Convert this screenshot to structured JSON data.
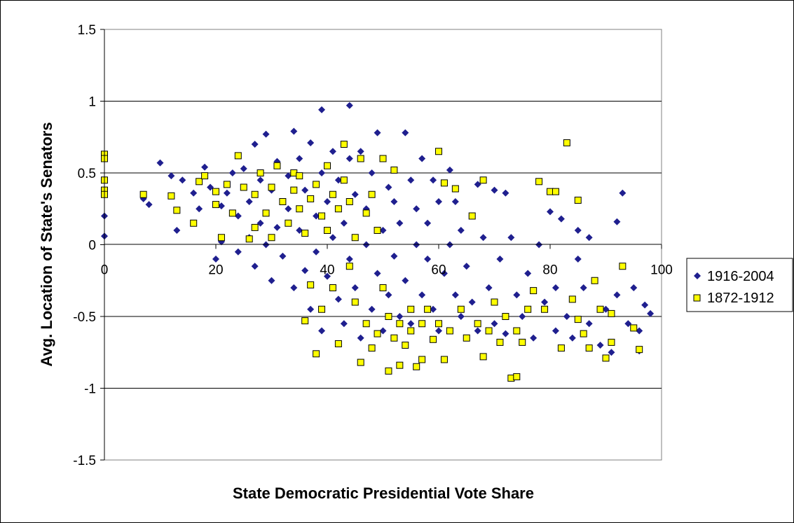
{
  "chart_data": {
    "type": "scatter",
    "title": "",
    "xlabel": "State Democratic Presidential Vote Share",
    "ylabel": "Avg. Location of State's Senators",
    "xlim": [
      0,
      100
    ],
    "ylim": [
      -1.5,
      1.5
    ],
    "x_ticks": [
      "0",
      "20",
      "40",
      "60",
      "80",
      "100"
    ],
    "y_ticks": [
      "1.5",
      "1",
      "0.5",
      "0",
      "-0.5",
      "-1",
      "-1.5"
    ],
    "grid": "horizontal",
    "legend_position": "right",
    "series": [
      {
        "name": "1916-2004",
        "marker": "diamond",
        "color": "#1f1f8f",
        "points": [
          [
            0,
            0.2
          ],
          [
            0,
            0.06
          ],
          [
            7,
            0.32
          ],
          [
            8,
            0.28
          ],
          [
            10,
            0.57
          ],
          [
            12,
            0.48
          ],
          [
            13,
            0.1
          ],
          [
            14,
            0.45
          ],
          [
            16,
            0.36
          ],
          [
            17,
            0.25
          ],
          [
            18,
            0.54
          ],
          [
            19,
            0.4
          ],
          [
            20,
            -0.1
          ],
          [
            21,
            0.27
          ],
          [
            21,
            0.02
          ],
          [
            22,
            0.36
          ],
          [
            23,
            0.5
          ],
          [
            24,
            0.2
          ],
          [
            24,
            -0.05
          ],
          [
            25,
            0.53
          ],
          [
            26,
            0.3
          ],
          [
            26,
            0.05
          ],
          [
            27,
            0.7
          ],
          [
            27,
            -0.15
          ],
          [
            28,
            0.45
          ],
          [
            28,
            0.15
          ],
          [
            29,
            0.77
          ],
          [
            29,
            0.0
          ],
          [
            30,
            0.38
          ],
          [
            30,
            -0.25
          ],
          [
            31,
            0.58
          ],
          [
            31,
            0.12
          ],
          [
            32,
            -0.08
          ],
          [
            33,
            0.48
          ],
          [
            33,
            0.25
          ],
          [
            34,
            0.79
          ],
          [
            34,
            -0.3
          ],
          [
            35,
            0.1
          ],
          [
            35,
            0.6
          ],
          [
            36,
            -0.18
          ],
          [
            36,
            0.38
          ],
          [
            37,
            0.71
          ],
          [
            37,
            -0.45
          ],
          [
            38,
            0.2
          ],
          [
            38,
            -0.05
          ],
          [
            39,
            0.94
          ],
          [
            39,
            0.5
          ],
          [
            39,
            -0.6
          ],
          [
            40,
            0.3
          ],
          [
            40,
            -0.22
          ],
          [
            41,
            0.65
          ],
          [
            41,
            0.05
          ],
          [
            42,
            -0.38
          ],
          [
            42,
            0.45
          ],
          [
            43,
            0.15
          ],
          [
            43,
            -0.55
          ],
          [
            44,
            0.97
          ],
          [
            44,
            0.6
          ],
          [
            44,
            -0.1
          ],
          [
            45,
            0.35
          ],
          [
            45,
            -0.3
          ],
          [
            46,
            0.65
          ],
          [
            46,
            -0.65
          ],
          [
            47,
            0.0
          ],
          [
            47,
            0.25
          ],
          [
            48,
            0.5
          ],
          [
            48,
            -0.45
          ],
          [
            49,
            0.78
          ],
          [
            49,
            -0.2
          ],
          [
            50,
            0.1
          ],
          [
            50,
            -0.6
          ],
          [
            51,
            0.4
          ],
          [
            51,
            -0.35
          ],
          [
            52,
            -0.08
          ],
          [
            52,
            0.3
          ],
          [
            53,
            -0.5
          ],
          [
            53,
            0.15
          ],
          [
            54,
            0.78
          ],
          [
            54,
            -0.25
          ],
          [
            55,
            0.45
          ],
          [
            55,
            -0.55
          ],
          [
            56,
            0.0
          ],
          [
            56,
            0.25
          ],
          [
            57,
            -0.35
          ],
          [
            57,
            0.6
          ],
          [
            58,
            -0.1
          ],
          [
            58,
            0.15
          ],
          [
            59,
            0.45
          ],
          [
            59,
            -0.45
          ],
          [
            60,
            0.3
          ],
          [
            60,
            -0.6
          ],
          [
            61,
            -0.2
          ],
          [
            62,
            0.52
          ],
          [
            62,
            0.0
          ],
          [
            63,
            -0.35
          ],
          [
            63,
            0.3
          ],
          [
            64,
            -0.5
          ],
          [
            64,
            0.1
          ],
          [
            65,
            -0.15
          ],
          [
            66,
            0.2
          ],
          [
            66,
            -0.4
          ],
          [
            67,
            0.42
          ],
          [
            67,
            -0.6
          ],
          [
            68,
            0.05
          ],
          [
            69,
            -0.3
          ],
          [
            70,
            0.38
          ],
          [
            70,
            -0.55
          ],
          [
            71,
            -0.1
          ],
          [
            72,
            0.36
          ],
          [
            72,
            -0.62
          ],
          [
            73,
            0.05
          ],
          [
            74,
            -0.35
          ],
          [
            75,
            -0.5
          ],
          [
            76,
            -0.2
          ],
          [
            77,
            -0.65
          ],
          [
            78,
            0.0
          ],
          [
            79,
            -0.4
          ],
          [
            80,
            0.23
          ],
          [
            81,
            -0.6
          ],
          [
            81,
            -0.3
          ],
          [
            82,
            0.18
          ],
          [
            83,
            -0.5
          ],
          [
            84,
            -0.65
          ],
          [
            85,
            0.1
          ],
          [
            85,
            -0.1
          ],
          [
            86,
            -0.3
          ],
          [
            87,
            0.05
          ],
          [
            87,
            -0.55
          ],
          [
            88,
            -0.25
          ],
          [
            89,
            -0.7
          ],
          [
            90,
            -0.45
          ],
          [
            91,
            -0.75
          ],
          [
            92,
            0.16
          ],
          [
            92,
            -0.35
          ],
          [
            93,
            0.36
          ],
          [
            94,
            -0.55
          ],
          [
            95,
            -0.3
          ],
          [
            96,
            -0.6
          ],
          [
            96,
            -0.74
          ],
          [
            97,
            -0.42
          ],
          [
            98,
            -0.48
          ]
        ]
      },
      {
        "name": "1872-1912",
        "marker": "square",
        "color": "#ffff00",
        "points": [
          [
            0,
            0.63
          ],
          [
            0,
            0.6
          ],
          [
            0,
            0.45
          ],
          [
            0,
            0.38
          ],
          [
            0,
            0.35
          ],
          [
            7,
            0.35
          ],
          [
            12,
            0.34
          ],
          [
            13,
            0.24
          ],
          [
            16,
            0.15
          ],
          [
            17,
            0.44
          ],
          [
            18,
            0.48
          ],
          [
            20,
            0.37
          ],
          [
            20,
            0.28
          ],
          [
            21,
            0.05
          ],
          [
            22,
            0.42
          ],
          [
            23,
            0.22
          ],
          [
            24,
            0.62
          ],
          [
            25,
            0.4
          ],
          [
            26,
            0.04
          ],
          [
            27,
            0.35
          ],
          [
            27,
            0.12
          ],
          [
            28,
            0.5
          ],
          [
            29,
            0.22
          ],
          [
            30,
            0.4
          ],
          [
            30,
            0.05
          ],
          [
            31,
            0.55
          ],
          [
            32,
            0.3
          ],
          [
            33,
            0.15
          ],
          [
            34,
            0.5
          ],
          [
            34,
            0.38
          ],
          [
            35,
            0.25
          ],
          [
            35,
            0.48
          ],
          [
            36,
            -0.53
          ],
          [
            36,
            0.08
          ],
          [
            37,
            0.32
          ],
          [
            37,
            -0.28
          ],
          [
            38,
            0.42
          ],
          [
            38,
            -0.76
          ],
          [
            39,
            0.2
          ],
          [
            39,
            -0.45
          ],
          [
            40,
            0.55
          ],
          [
            40,
            0.1
          ],
          [
            41,
            0.35
          ],
          [
            41,
            -0.3
          ],
          [
            42,
            0.25
          ],
          [
            42,
            -0.69
          ],
          [
            43,
            0.7
          ],
          [
            43,
            0.45
          ],
          [
            44,
            -0.15
          ],
          [
            44,
            0.3
          ],
          [
            45,
            0.05
          ],
          [
            45,
            -0.4
          ],
          [
            46,
            0.6
          ],
          [
            46,
            -0.82
          ],
          [
            47,
            0.22
          ],
          [
            47,
            -0.55
          ],
          [
            48,
            0.35
          ],
          [
            48,
            -0.72
          ],
          [
            49,
            0.1
          ],
          [
            49,
            -0.62
          ],
          [
            50,
            0.6
          ],
          [
            50,
            -0.3
          ],
          [
            51,
            -0.5
          ],
          [
            51,
            -0.88
          ],
          [
            52,
            0.52
          ],
          [
            52,
            -0.65
          ],
          [
            53,
            -0.55
          ],
          [
            53,
            -0.84
          ],
          [
            54,
            -0.7
          ],
          [
            55,
            -0.45
          ],
          [
            55,
            -0.6
          ],
          [
            56,
            -0.85
          ],
          [
            57,
            -0.55
          ],
          [
            57,
            -0.8
          ],
          [
            58,
            -0.45
          ],
          [
            59,
            -0.66
          ],
          [
            60,
            0.65
          ],
          [
            60,
            -0.55
          ],
          [
            61,
            0.43
          ],
          [
            61,
            -0.8
          ],
          [
            62,
            -0.6
          ],
          [
            63,
            0.39
          ],
          [
            64,
            -0.45
          ],
          [
            65,
            -0.65
          ],
          [
            66,
            0.2
          ],
          [
            67,
            -0.55
          ],
          [
            68,
            0.45
          ],
          [
            68,
            -0.78
          ],
          [
            69,
            -0.6
          ],
          [
            70,
            -0.4
          ],
          [
            71,
            -0.68
          ],
          [
            72,
            -0.5
          ],
          [
            73,
            -0.93
          ],
          [
            74,
            -0.92
          ],
          [
            74,
            -0.6
          ],
          [
            75,
            -0.68
          ],
          [
            76,
            -0.45
          ],
          [
            77,
            -0.32
          ],
          [
            78,
            0.44
          ],
          [
            79,
            -0.45
          ],
          [
            80,
            0.37
          ],
          [
            81,
            0.37
          ],
          [
            82,
            -0.72
          ],
          [
            83,
            0.71
          ],
          [
            84,
            -0.38
          ],
          [
            85,
            0.31
          ],
          [
            85,
            -0.52
          ],
          [
            86,
            -0.62
          ],
          [
            87,
            -0.72
          ],
          [
            88,
            -0.25
          ],
          [
            89,
            -0.45
          ],
          [
            90,
            -0.79
          ],
          [
            91,
            -0.68
          ],
          [
            91,
            -0.48
          ],
          [
            93,
            -0.15
          ],
          [
            95,
            -0.58
          ],
          [
            96,
            -0.73
          ]
        ]
      }
    ]
  }
}
